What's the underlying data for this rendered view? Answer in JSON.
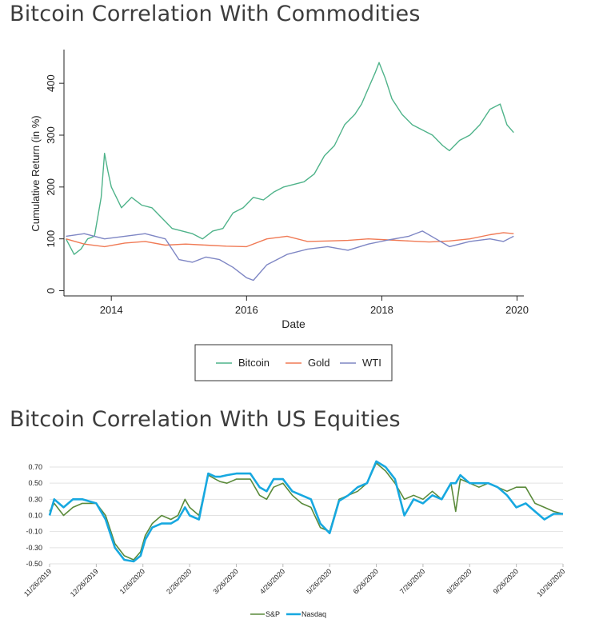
{
  "sections": [
    {
      "title": "Bitcoin Correlation With Commodities"
    },
    {
      "title": "Bitcoin Correlation With US Equities"
    }
  ],
  "chart_data": [
    {
      "type": "line",
      "title": "Bitcoin Correlation With Commodities",
      "xlabel": "Date",
      "ylabel": "Cumulative Return (in %)",
      "xlim": [
        2013.3,
        2020.1
      ],
      "ylim": [
        -10,
        465
      ],
      "xticks": [
        2014,
        2016,
        2018,
        2020
      ],
      "xtick_labels": [
        "2014",
        "2016",
        "2018",
        "2020"
      ],
      "yticks": [
        0,
        100,
        200,
        300,
        400
      ],
      "ytick_labels": [
        "0",
        "100",
        "200",
        "300",
        "400"
      ],
      "grid": false,
      "legend_position": "bottom",
      "series": [
        {
          "name": "Bitcoin",
          "color": "#4fb38a",
          "x": [
            2013.33,
            2013.45,
            2013.55,
            2013.65,
            2013.75,
            2013.85,
            2013.9,
            2013.95,
            2014.0,
            2014.15,
            2014.3,
            2014.45,
            2014.6,
            2014.75,
            2014.9,
            2015.05,
            2015.2,
            2015.35,
            2015.5,
            2015.65,
            2015.8,
            2015.95,
            2016.1,
            2016.25,
            2016.4,
            2016.55,
            2016.7,
            2016.85,
            2017.0,
            2017.15,
            2017.3,
            2017.45,
            2017.6,
            2017.7,
            2017.8,
            2017.9,
            2017.96,
            2018.05,
            2018.15,
            2018.3,
            2018.45,
            2018.6,
            2018.75,
            2018.9,
            2019.0,
            2019.15,
            2019.3,
            2019.45,
            2019.6,
            2019.75,
            2019.85,
            2019.95
          ],
          "y": [
            100,
            70,
            80,
            100,
            105,
            180,
            265,
            230,
            200,
            160,
            180,
            165,
            160,
            140,
            120,
            115,
            110,
            100,
            115,
            120,
            150,
            160,
            180,
            175,
            190,
            200,
            205,
            210,
            225,
            260,
            280,
            320,
            340,
            360,
            390,
            420,
            440,
            410,
            370,
            340,
            320,
            310,
            300,
            280,
            270,
            290,
            300,
            320,
            350,
            360,
            320,
            305
          ]
        },
        {
          "name": "Gold",
          "color": "#f07a55",
          "x": [
            2013.33,
            2013.6,
            2013.9,
            2014.2,
            2014.5,
            2014.8,
            2015.1,
            2015.4,
            2015.7,
            2016.0,
            2016.3,
            2016.6,
            2016.9,
            2017.2,
            2017.5,
            2017.8,
            2018.1,
            2018.4,
            2018.7,
            2019.0,
            2019.3,
            2019.6,
            2019.8,
            2019.95
          ],
          "y": [
            100,
            90,
            85,
            92,
            95,
            88,
            90,
            88,
            86,
            85,
            100,
            105,
            95,
            96,
            97,
            100,
            98,
            96,
            94,
            96,
            100,
            108,
            112,
            110
          ]
        },
        {
          "name": "WTI",
          "color": "#7e86c4",
          "x": [
            2013.33,
            2013.6,
            2013.9,
            2014.2,
            2014.5,
            2014.8,
            2015.0,
            2015.2,
            2015.4,
            2015.6,
            2015.8,
            2016.0,
            2016.1,
            2016.3,
            2016.6,
            2016.9,
            2017.2,
            2017.5,
            2017.8,
            2018.1,
            2018.4,
            2018.6,
            2018.8,
            2019.0,
            2019.3,
            2019.6,
            2019.8,
            2019.95
          ],
          "y": [
            105,
            110,
            100,
            105,
            110,
            100,
            60,
            55,
            65,
            60,
            45,
            25,
            20,
            50,
            70,
            80,
            85,
            78,
            90,
            98,
            105,
            115,
            100,
            85,
            95,
            100,
            95,
            105
          ]
        }
      ]
    },
    {
      "type": "line",
      "title": "Bitcoin Correlation With US Equities",
      "ylim": [
        -0.5,
        0.7
      ],
      "yticks": [
        0.7,
        0.5,
        0.3,
        0.1,
        -0.1,
        -0.3,
        -0.5
      ],
      "ytick_labels": [
        "0.70",
        "0.50",
        "0.30",
        "0.10",
        "-0.10",
        "-0.30",
        "-0.50"
      ],
      "categories": [
        "11/26/2019",
        "12/26/2019",
        "1/26/2020",
        "2/26/2020",
        "3/26/2020",
        "4/26/2020",
        "5/26/2020",
        "6/26/2020",
        "7/26/2020",
        "8/26/2020",
        "9/26/2020",
        "10/26/2020"
      ],
      "grid": true,
      "legend_position": "bottom",
      "series": [
        {
          "name": "S&P",
          "color": "#5a8a3a",
          "x": [
            0,
            0.1,
            0.3,
            0.5,
            0.7,
            1.0,
            1.2,
            1.4,
            1.6,
            1.8,
            1.95,
            2.05,
            2.2,
            2.4,
            2.6,
            2.75,
            2.9,
            3.0,
            3.2,
            3.4,
            3.55,
            3.65,
            3.8,
            4.0,
            4.3,
            4.5,
            4.65,
            4.8,
            5.0,
            5.2,
            5.4,
            5.6,
            5.8,
            6.0,
            6.2,
            6.4,
            6.6,
            6.8,
            7.0,
            7.2,
            7.4,
            7.6,
            7.8,
            8.0,
            8.2,
            8.4,
            8.6,
            8.7,
            8.8,
            9.0,
            9.2,
            9.4,
            9.6,
            9.8,
            10.0,
            10.2,
            10.4,
            10.6,
            10.8,
            11.0
          ],
          "y": [
            0.15,
            0.25,
            0.1,
            0.2,
            0.25,
            0.25,
            0.1,
            -0.25,
            -0.4,
            -0.45,
            -0.35,
            -0.15,
            0.0,
            0.1,
            0.05,
            0.1,
            0.3,
            0.2,
            0.1,
            0.6,
            0.55,
            0.52,
            0.5,
            0.55,
            0.55,
            0.35,
            0.3,
            0.45,
            0.5,
            0.35,
            0.25,
            0.2,
            -0.05,
            -0.1,
            0.3,
            0.35,
            0.4,
            0.5,
            0.75,
            0.65,
            0.5,
            0.3,
            0.35,
            0.3,
            0.4,
            0.3,
            0.5,
            0.15,
            0.55,
            0.5,
            0.45,
            0.5,
            0.45,
            0.4,
            0.45,
            0.45,
            0.25,
            0.2,
            0.15,
            0.12
          ]
        },
        {
          "name": "Nasdaq",
          "color": "#17a8e0",
          "x": [
            0,
            0.1,
            0.3,
            0.5,
            0.7,
            1.0,
            1.2,
            1.4,
            1.6,
            1.8,
            1.95,
            2.05,
            2.2,
            2.4,
            2.6,
            2.75,
            2.9,
            3.0,
            3.2,
            3.4,
            3.55,
            3.65,
            3.8,
            4.0,
            4.3,
            4.5,
            4.65,
            4.8,
            5.0,
            5.2,
            5.4,
            5.6,
            5.8,
            6.0,
            6.2,
            6.4,
            6.6,
            6.8,
            7.0,
            7.2,
            7.4,
            7.6,
            7.8,
            8.0,
            8.2,
            8.4,
            8.6,
            8.7,
            8.8,
            9.0,
            9.2,
            9.4,
            9.6,
            9.8,
            10.0,
            10.2,
            10.4,
            10.6,
            10.8,
            11.0
          ],
          "y": [
            0.1,
            0.3,
            0.2,
            0.3,
            0.3,
            0.25,
            0.05,
            -0.3,
            -0.45,
            -0.47,
            -0.4,
            -0.2,
            -0.05,
            0.0,
            0.0,
            0.05,
            0.2,
            0.1,
            0.05,
            0.62,
            0.58,
            0.58,
            0.6,
            0.62,
            0.62,
            0.45,
            0.4,
            0.55,
            0.55,
            0.4,
            0.35,
            0.3,
            0.0,
            -0.12,
            0.28,
            0.35,
            0.45,
            0.5,
            0.77,
            0.7,
            0.55,
            0.1,
            0.3,
            0.25,
            0.35,
            0.3,
            0.5,
            0.5,
            0.6,
            0.5,
            0.5,
            0.5,
            0.45,
            0.35,
            0.2,
            0.25,
            0.15,
            0.05,
            0.12,
            0.12
          ]
        }
      ]
    }
  ]
}
